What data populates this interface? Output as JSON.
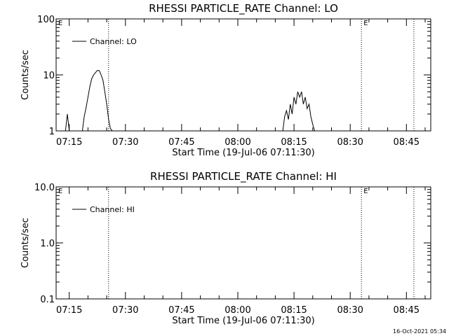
{
  "footer_date": "16-Oct-2021 05:34",
  "chart_data": [
    {
      "type": "line",
      "title": "RHESSI PARTICLE_RATE Channel: LO",
      "xlabel": "Start Time (19-Jul-06 07:11:30)",
      "ylabel": "Counts/sec",
      "yscale": "log",
      "ylim": [
        1,
        100
      ],
      "yticks": [
        "1",
        "10",
        "100"
      ],
      "xlim": [
        "07:11:30",
        "08:51:30"
      ],
      "xticks": [
        "07:15",
        "07:30",
        "07:45",
        "08:00",
        "08:15",
        "08:30",
        "08:45"
      ],
      "legend": "Channel: LO",
      "event_markers": [
        {
          "time": "07:11:30",
          "label": "E",
          "dotted": false
        },
        {
          "time": "07:25:30",
          "label": "",
          "dotted": true
        },
        {
          "time": "08:33:00",
          "label": "E",
          "dotted": true
        },
        {
          "time": "08:47:00",
          "label": "",
          "dotted": true
        }
      ],
      "series": [
        {
          "name": "Channel: LO",
          "x": [
            "07:14:00",
            "07:14:30",
            "07:15:00",
            "07:15:30",
            "07:16:00",
            "07:16:30",
            "07:17:00",
            "07:18:30",
            "07:19:00",
            "07:19:30",
            "07:20:00",
            "07:20:30",
            "07:21:00",
            "07:21:30",
            "07:22:00",
            "07:22:30",
            "07:23:00",
            "07:23:30",
            "07:24:00",
            "07:24:30",
            "07:25:00",
            "07:25:30",
            "07:26:00",
            "07:26:30",
            "08:12:00",
            "08:12:30",
            "08:13:00",
            "08:13:30",
            "08:14:00",
            "08:14:30",
            "08:15:00",
            "08:15:30",
            "08:16:00",
            "08:16:30",
            "08:17:00",
            "08:17:30",
            "08:18:00",
            "08:18:30",
            "08:19:00",
            "08:19:30",
            "08:20:00",
            "08:20:30",
            "08:21:00"
          ],
          "y": [
            1,
            2,
            1,
            null,
            null,
            null,
            null,
            1,
            1.8,
            2.6,
            4.0,
            6.2,
            8.5,
            10,
            11,
            12,
            12,
            10,
            8,
            5,
            3,
            1.6,
            1.1,
            1,
            1,
            1.8,
            2.3,
            1.6,
            3.0,
            2.0,
            4.0,
            3.0,
            5.0,
            4.0,
            5.0,
            3.0,
            4.0,
            2.5,
            3.0,
            1.8,
            1.3,
            1,
            1
          ]
        }
      ]
    },
    {
      "type": "line",
      "title": "RHESSI PARTICLE_RATE Channel: HI",
      "xlabel": "Start Time (19-Jul-06 07:11:30)",
      "ylabel": "Counts/sec",
      "yscale": "log",
      "ylim": [
        0.1,
        10
      ],
      "yticks": [
        "0.1",
        "1.0",
        "10.0"
      ],
      "xlim": [
        "07:11:30",
        "08:51:30"
      ],
      "xticks": [
        "07:15",
        "07:30",
        "07:45",
        "08:00",
        "08:15",
        "08:30",
        "08:45"
      ],
      "legend": "Channel: HI",
      "event_markers": [
        {
          "time": "07:11:30",
          "label": "E",
          "dotted": false
        },
        {
          "time": "07:25:30",
          "label": "",
          "dotted": true
        },
        {
          "time": "08:33:00",
          "label": "E",
          "dotted": true
        },
        {
          "time": "08:47:00",
          "label": "",
          "dotted": true
        }
      ],
      "series": [
        {
          "name": "Channel: HI",
          "x": [],
          "y": []
        }
      ]
    }
  ]
}
